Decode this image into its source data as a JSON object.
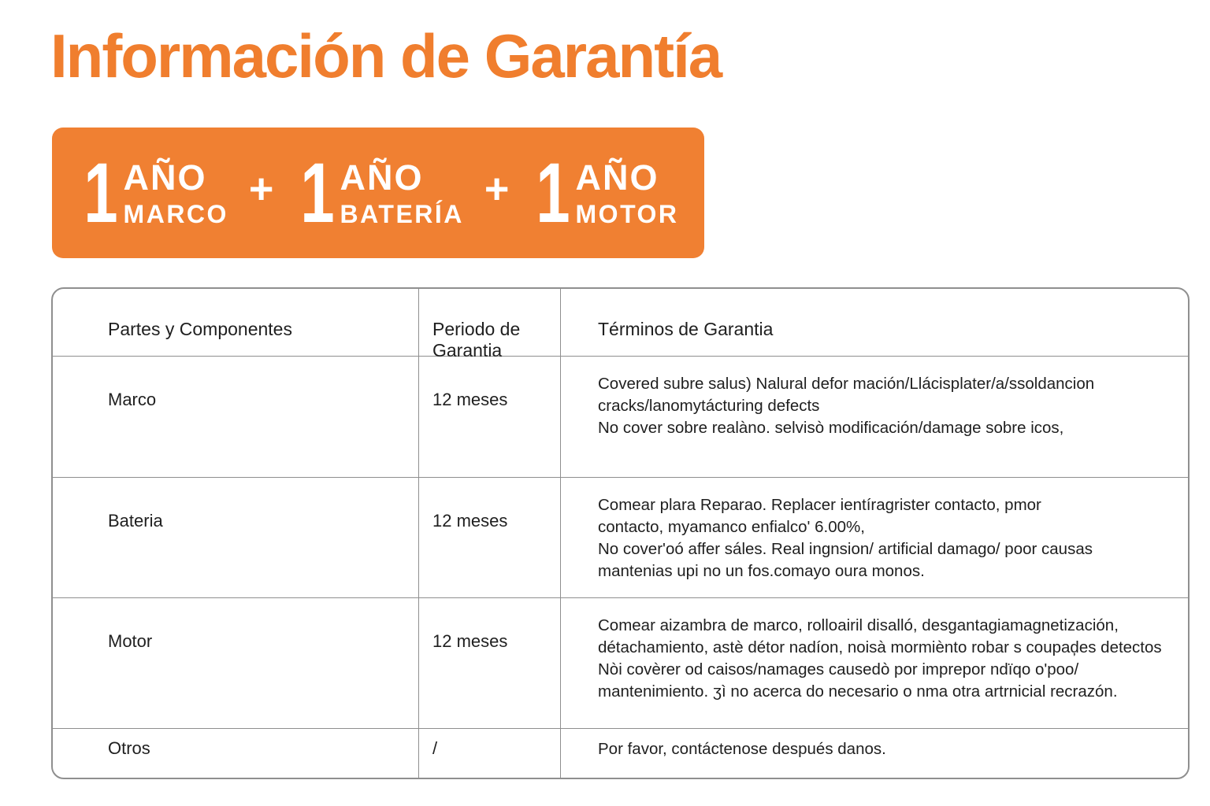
{
  "page": {
    "title": "Información de Garantía"
  },
  "colors": {
    "accent_orange": "#f08032",
    "title_orange": "#f07e2e",
    "table_border": "#8f8f8f",
    "text": "#1f1f1f",
    "banner_text": "#ffffff"
  },
  "banner": {
    "separator": "+",
    "items": [
      {
        "number": "1",
        "unit": "AÑO",
        "label": "MARCO"
      },
      {
        "number": "1",
        "unit": "AÑO",
        "label": "BATERÍA"
      },
      {
        "number": "1",
        "unit": "AÑO",
        "label": "MOTOR"
      }
    ]
  },
  "table": {
    "headers": [
      "Partes y Componentes",
      "Periodo de Garantia",
      "Términos de Garantia"
    ],
    "rows": [
      {
        "part": "Marco",
        "period": "12 meses",
        "terms": "Covered subre salus) Nalural defor mación/Llácisplater/a/ssoldancion\ncracks/lanomytácturing defects\nNo cover sobre realàno. selvisò modificación/damage sobre icos,"
      },
      {
        "part": "Bateria",
        "period": "12 meses",
        "terms": "Comear plara Reparao. Replacer ientíragrister contacto, pmor\ncontacto, myamanco enfialco' 6.00%,\nNo cover'oó affer sáles. Real ingnsion/ artificial damago/ poor causas\nmantenias upi no un fos.comayo oura monos."
      },
      {
        "part": "Motor",
        "period": "12 meses",
        "terms": "Comear aizambra de marco, rolloairil disalló, desgantagiamagnetización,\ndétachamiento, astè détor nadíon, noisà mormiènto robar s coupaḑes detectos\nNòi covèrer od caisos/namages causedò por imprepor ndïqo o'poo/\nmantenimiento. ʒì no acerca do necesario o nma otra artrnicial recrazón."
      },
      {
        "part": "Otros",
        "period": "/",
        "terms": "Por favor, contáctenose después danos."
      }
    ]
  }
}
